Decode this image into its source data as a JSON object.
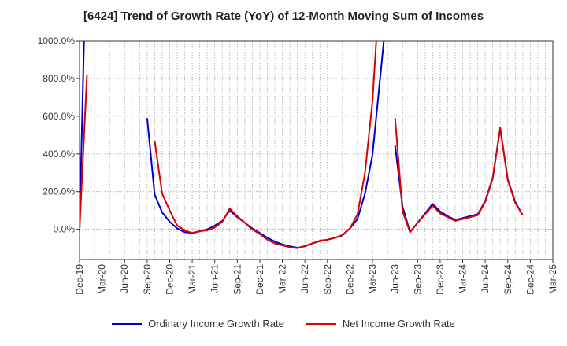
{
  "chart_data": {
    "type": "line",
    "title": "[6424]  Trend of Growth Rate (YoY) of 12-Month Moving Sum of Incomes",
    "xlabel": "",
    "ylabel": "",
    "ylim": [
      -160,
      1000
    ],
    "yticks": [
      0,
      200,
      400,
      600,
      800,
      1000
    ],
    "ytick_labels": [
      "0.0%",
      "200.0%",
      "400.0%",
      "600.0%",
      "800.0%",
      "1000.0%"
    ],
    "xticks": [
      "Dec-19",
      "Mar-20",
      "Jun-20",
      "Sep-20",
      "Dec-20",
      "Mar-21",
      "Jun-21",
      "Sep-21",
      "Dec-21",
      "Mar-22",
      "Jun-22",
      "Sep-22",
      "Dec-22",
      "Mar-23",
      "Jun-23",
      "Sep-23",
      "Dec-23",
      "Mar-24",
      "Jun-24",
      "Sep-24",
      "Dec-24",
      "Mar-25"
    ],
    "grid": true,
    "legend_position": "bottom",
    "series": [
      {
        "name": "Ordinary Income Growth Rate",
        "color": "#0000cc",
        "segments": [
          [
            [
              0,
              0
            ],
            [
              0.6,
              1000
            ]
          ],
          [
            [
              9,
              590
            ],
            [
              10,
              185
            ],
            [
              11,
              90
            ],
            [
              12,
              40
            ],
            [
              13,
              5
            ],
            [
              14,
              -15
            ],
            [
              15,
              -20
            ],
            [
              16,
              -10
            ],
            [
              17,
              0
            ],
            [
              18,
              20
            ],
            [
              19,
              45
            ],
            [
              20,
              100
            ],
            [
              21,
              65
            ],
            [
              22,
              35
            ],
            [
              23,
              5
            ],
            [
              24,
              -20
            ],
            [
              25,
              -45
            ],
            [
              26,
              -65
            ],
            [
              27,
              -80
            ],
            [
              28,
              -90
            ],
            [
              29,
              -98
            ],
            [
              30,
              -90
            ],
            [
              31,
              -75
            ],
            [
              32,
              -62
            ],
            [
              33,
              -55
            ],
            [
              34,
              -45
            ],
            [
              35,
              -32
            ],
            [
              36,
              5
            ],
            [
              37,
              55
            ],
            [
              38,
              190
            ],
            [
              39,
              395
            ],
            [
              40.5,
              1000
            ]
          ],
          [
            [
              42,
              445
            ],
            [
              43,
              120
            ],
            [
              44,
              -15
            ],
            [
              45,
              35
            ],
            [
              46,
              85
            ],
            [
              47,
              135
            ],
            [
              48,
              95
            ],
            [
              49,
              70
            ],
            [
              50,
              50
            ],
            [
              51,
              60
            ],
            [
              52,
              70
            ],
            [
              53,
              80
            ],
            [
              54,
              150
            ],
            [
              55,
              275
            ],
            [
              56,
              535
            ],
            [
              57,
              265
            ],
            [
              58,
              145
            ],
            [
              59,
              75
            ]
          ]
        ]
      },
      {
        "name": "Net Income Growth Rate",
        "color": "#dd0000",
        "segments": [
          [
            [
              0,
              0
            ],
            [
              1,
              820
            ]
          ],
          [
            [
              10,
              470
            ],
            [
              11,
              190
            ],
            [
              12,
              100
            ],
            [
              13,
              20
            ],
            [
              14,
              -5
            ],
            [
              15,
              -20
            ],
            [
              16,
              -10
            ],
            [
              17,
              -5
            ],
            [
              18,
              10
            ],
            [
              19,
              40
            ],
            [
              20,
              110
            ],
            [
              21,
              70
            ],
            [
              22,
              35
            ],
            [
              23,
              0
            ],
            [
              24,
              -25
            ],
            [
              25,
              -55
            ],
            [
              26,
              -75
            ],
            [
              27,
              -85
            ],
            [
              28,
              -95
            ],
            [
              29,
              -100
            ],
            [
              30,
              -88
            ],
            [
              31,
              -75
            ],
            [
              32,
              -60
            ],
            [
              33,
              -55
            ],
            [
              34,
              -45
            ],
            [
              35,
              -30
            ],
            [
              36,
              5
            ],
            [
              37,
              80
            ],
            [
              38,
              300
            ],
            [
              39,
              680
            ],
            [
              39.5,
              1000
            ]
          ],
          [
            [
              42,
              590
            ],
            [
              43,
              95
            ],
            [
              44,
              -15
            ],
            [
              45,
              35
            ],
            [
              46,
              80
            ],
            [
              47,
              125
            ],
            [
              48,
              85
            ],
            [
              49,
              65
            ],
            [
              50,
              45
            ],
            [
              51,
              55
            ],
            [
              52,
              65
            ],
            [
              53,
              75
            ],
            [
              54,
              145
            ],
            [
              55,
              270
            ],
            [
              56,
              540
            ],
            [
              57,
              260
            ],
            [
              58,
              140
            ],
            [
              59,
              75
            ]
          ]
        ]
      }
    ]
  }
}
